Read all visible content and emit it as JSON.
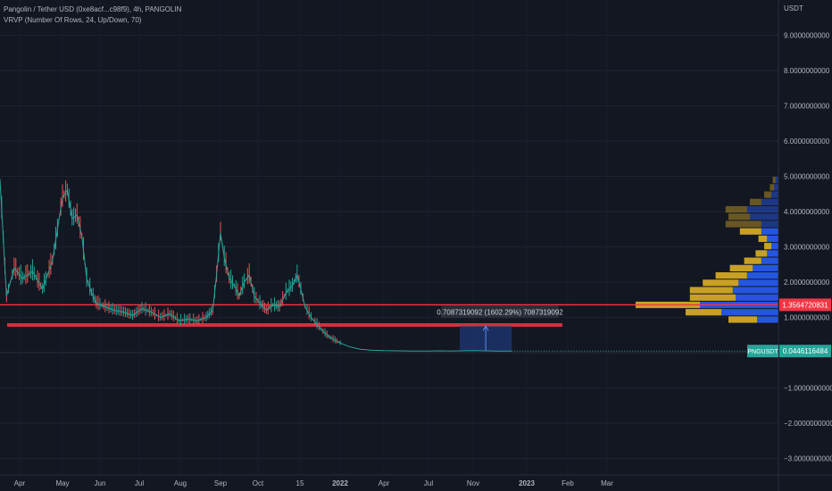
{
  "legend": {
    "symbol_line": "Pangolin / Tether USD (0xe8acf...c98f9), 4h, PANGOLIN",
    "indicator_line": "VRVP (Number Of Rows, 24, Up/Down, 70)"
  },
  "colors": {
    "background": "#131722",
    "price_line": "#26a69a",
    "candle_up": "#26a69a",
    "candle_down": "#ef5350",
    "horizontal_line": "#f23645",
    "volume_up": "#2962ff",
    "volume_down": "#e9b825",
    "measure_box": "#1e3a7a",
    "price_tag_bg": "#26a69a",
    "level_tag_bg": "#f23645"
  },
  "chart_data": {
    "type": "line",
    "title": "Pangolin / Tether USD (0xe8acf...c98f9), 4h, PANGOLIN",
    "y_unit": "USDT",
    "ylim": [
      -3.3,
      10.0
    ],
    "y_ticks": [
      -3.0,
      -2.0,
      -1.0,
      0.0,
      1.0,
      2.0,
      3.0,
      4.0,
      5.0,
      6.0,
      7.0,
      8.0,
      9.0
    ],
    "y_tick_labels": [
      "−3.0000000000",
      "−2.0000000000",
      "−1.0000000000",
      "",
      "1.0000000000",
      "2.0000000000",
      "3.0000000000",
      "4.0000000000",
      "5.0000000000",
      "6.0000000000",
      "7.0000000000",
      "8.0000000000",
      "9.0000000000"
    ],
    "x_tick_labels": [
      "Apr",
      "May",
      "Jun",
      "Jul",
      "Aug",
      "Sep",
      "Oct",
      "15",
      "2022",
      "Apr",
      "Jul",
      "Nov",
      "2023",
      "Feb",
      "Mar"
    ],
    "x_tick_dates": [
      "2021-04-01",
      "2021-05-01",
      "2021-06-01",
      "2021-07-01",
      "2021-08-01",
      "2021-09-01",
      "2021-10-01",
      "2021-11-15",
      "2022-01-01",
      "2022-04-01",
      "2022-07-01",
      "2022-11-01",
      "2023-01-01",
      "2023-02-01",
      "2023-03-01"
    ],
    "series": [
      {
        "x": [
          "2021-03-14",
          "2021-03-20",
          "2021-03-27",
          "2021-04-03",
          "2021-04-10",
          "2021-04-17",
          "2021-04-24",
          "2021-05-01",
          "2021-05-05",
          "2021-05-09",
          "2021-05-13",
          "2021-05-17",
          "2021-05-21",
          "2021-05-25",
          "2021-05-29",
          "2021-06-05",
          "2021-06-12",
          "2021-06-19",
          "2021-06-26",
          "2021-07-03",
          "2021-07-10",
          "2021-07-17",
          "2021-07-24",
          "2021-07-31",
          "2021-08-07",
          "2021-08-14",
          "2021-08-21",
          "2021-08-26",
          "2021-08-29",
          "2021-09-01",
          "2021-09-04",
          "2021-09-08",
          "2021-09-12",
          "2021-09-16",
          "2021-09-20",
          "2021-09-24",
          "2021-09-28",
          "2021-10-03",
          "2021-10-10",
          "2021-10-17",
          "2021-10-24",
          "2021-10-31",
          "2021-11-07",
          "2021-11-12",
          "2021-11-16",
          "2021-11-21",
          "2021-11-28",
          "2021-12-05",
          "2021-12-12",
          "2021-12-19",
          "2021-12-26",
          "2022-01-05",
          "2022-01-20",
          "2022-02-10",
          "2022-03-05",
          "2022-04-01",
          "2022-05-01",
          "2022-06-01",
          "2022-07-01",
          "2022-08-01",
          "2022-09-01",
          "2022-10-01",
          "2022-11-01",
          "2022-12-01",
          "2022-12-15"
        ],
        "y": [
          4.9,
          1.6,
          2.4,
          2.1,
          2.3,
          1.8,
          2.6,
          4.4,
          4.6,
          3.8,
          3.9,
          3.3,
          2.1,
          1.7,
          1.4,
          1.3,
          1.2,
          1.15,
          1.05,
          1.25,
          1.15,
          1.0,
          1.1,
          0.9,
          0.95,
          0.9,
          1.0,
          1.2,
          2.2,
          3.4,
          2.7,
          2.1,
          1.9,
          1.6,
          2.0,
          2.2,
          1.6,
          1.4,
          1.2,
          1.35,
          1.3,
          1.7,
          1.9,
          2.2,
          1.8,
          1.3,
          1.0,
          0.8,
          0.6,
          0.45,
          0.35,
          0.25,
          0.17,
          0.1,
          0.07,
          0.055,
          0.05,
          0.045,
          0.045,
          0.05,
          0.046,
          0.05,
          0.055,
          0.04,
          0.0446
        ]
      }
    ],
    "horizontal_lines": [
      {
        "price": 1.3564720831,
        "label": "1.3564720831"
      },
      {
        "price": 0.7709,
        "label": ""
      }
    ],
    "last_price": {
      "symbol": "PNGUSDT",
      "value": "0.0446116484"
    },
    "measurement": {
      "label": "0.7087319092 (1602.29%) 7087319092",
      "from_price": 0.0446,
      "to_price": 0.753,
      "from_date": "2022-09-25",
      "to_date": "2022-12-15"
    },
    "volume_profile": {
      "rows": 24,
      "row_prices": [
        0.0,
        0.2083,
        0.4167,
        0.625,
        0.8333,
        1.0417,
        1.25,
        1.4583,
        1.6667,
        1.875,
        2.0833,
        2.2917,
        2.5,
        2.7083,
        2.9167,
        3.125,
        3.3333,
        3.5417,
        3.75,
        3.9583,
        4.1667,
        4.375,
        4.5833,
        4.7917
      ],
      "up_volume": [
        0.0,
        0.0,
        0.0,
        0.0,
        0.15,
        0.4,
        0.55,
        0.3,
        0.32,
        0.28,
        0.22,
        0.18,
        0.12,
        0.08,
        0.05,
        0.08,
        0.12,
        0.12,
        0.2,
        0.22,
        0.12,
        0.05,
        0.03,
        0.02
      ],
      "down_volume": [
        0.0,
        0.0,
        0.0,
        0.0,
        0.2,
        0.25,
        0.45,
        0.32,
        0.3,
        0.25,
        0.22,
        0.16,
        0.12,
        0.08,
        0.05,
        0.06,
        0.15,
        0.25,
        0.15,
        0.15,
        0.08,
        0.05,
        0.03,
        0.02
      ]
    }
  }
}
